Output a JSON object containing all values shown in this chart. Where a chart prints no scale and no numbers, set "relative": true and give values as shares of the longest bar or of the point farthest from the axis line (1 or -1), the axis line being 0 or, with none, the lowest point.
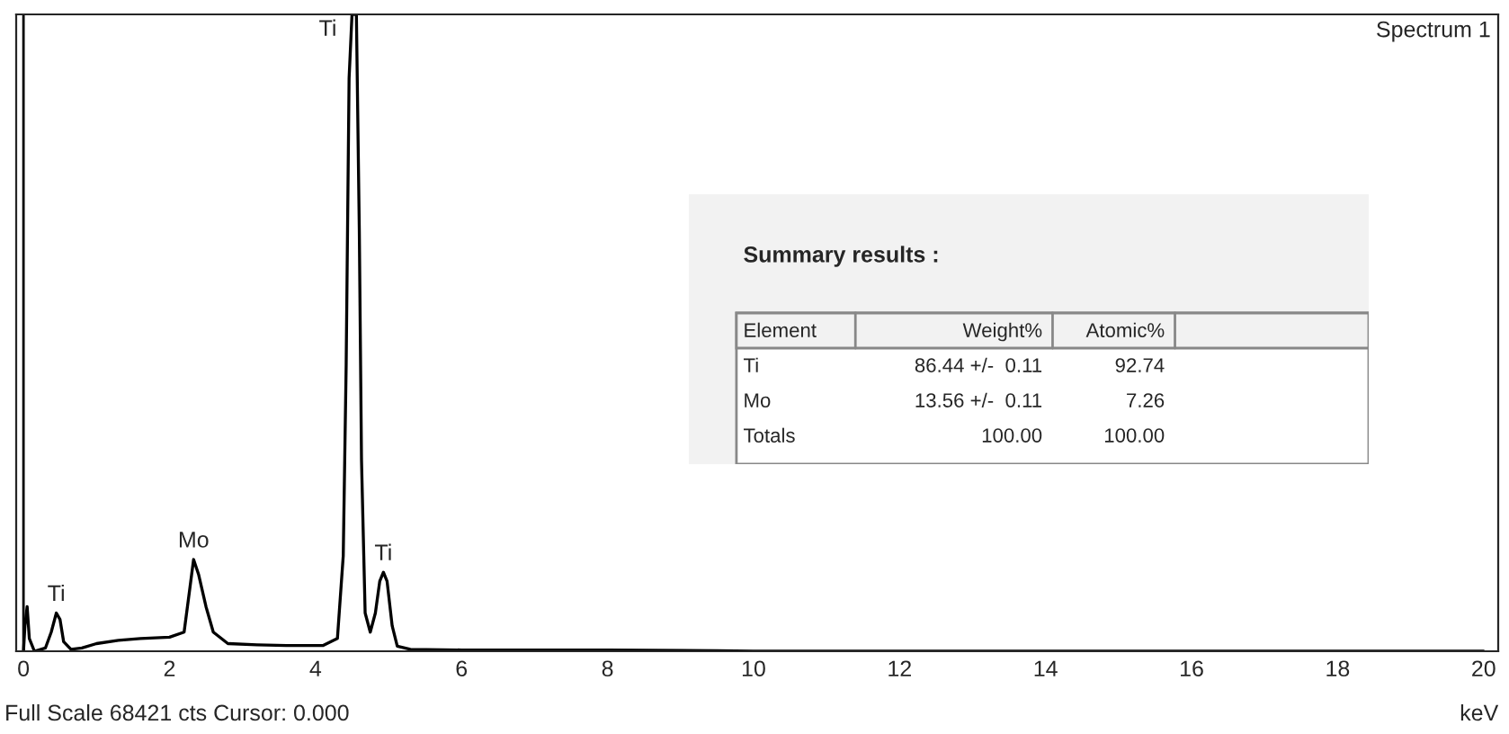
{
  "chart_data": [
    {
      "type": "line",
      "title": "Spectrum 1",
      "xlabel": "keV",
      "relative": true,
      "xlim": [
        -0.1,
        20.2
      ],
      "xticks": [
        0,
        2,
        4,
        6,
        8,
        10,
        12,
        14,
        16,
        18,
        20
      ],
      "grid": false,
      "legend": false,
      "series": [
        {
          "color": "#000000",
          "x": [
            0,
            0.02,
            0.05,
            0.08,
            0.15,
            0.3,
            0.38,
            0.45,
            0.5,
            0.55,
            0.65,
            0.8,
            1.0,
            1.3,
            1.6,
            2.0,
            2.2,
            2.28,
            2.33,
            2.4,
            2.5,
            2.6,
            2.8,
            3.2,
            3.6,
            4.1,
            4.3,
            4.38,
            4.42,
            4.46,
            4.5,
            4.56,
            4.6,
            4.63,
            4.68,
            4.75,
            4.82,
            4.88,
            4.93,
            4.98,
            5.05,
            5.12,
            5.3,
            6,
            8,
            9.5,
            10,
            12,
            16,
            20
          ],
          "values": [
            0,
            0.04,
            0.07,
            0.02,
            0,
            0.005,
            0.03,
            0.06,
            0.05,
            0.015,
            0.003,
            0.005,
            0.012,
            0.017,
            0.02,
            0.022,
            0.03,
            0.1,
            0.144,
            0.12,
            0.07,
            0.03,
            0.012,
            0.01,
            0.009,
            0.009,
            0.02,
            0.15,
            0.45,
            0.9,
            1.0,
            1.0,
            0.66,
            0.3,
            0.06,
            0.03,
            0.06,
            0.11,
            0.124,
            0.11,
            0.04,
            0.008,
            0.003,
            0.002,
            0.002,
            0.001,
            0,
            0,
            0,
            0
          ]
        }
      ],
      "ref_lines": [
        {
          "axis": "x",
          "value": 0,
          "color": "#000000"
        }
      ],
      "annotations": [
        {
          "text": "Ti",
          "x": 0.45,
          "y": 0.06
        },
        {
          "text": "Mo",
          "x": 2.33,
          "y": 0.144
        },
        {
          "text": "Ti",
          "x": 4.53,
          "y": 1.0
        },
        {
          "text": "Ti",
          "x": 4.93,
          "y": 0.124
        },
        "Full Scale 68421 cts Cursor: 0.000"
      ]
    },
    {
      "type": "other",
      "title": "Summary results :",
      "annotations": [
        "Element",
        "Weight%",
        "Atomic%",
        "Ti",
        "86.44 +/-  0.11",
        "92.74",
        "Mo",
        "13.56 +/-  0.11",
        "7.26",
        "Totals",
        "100.00",
        "100.00"
      ]
    }
  ]
}
